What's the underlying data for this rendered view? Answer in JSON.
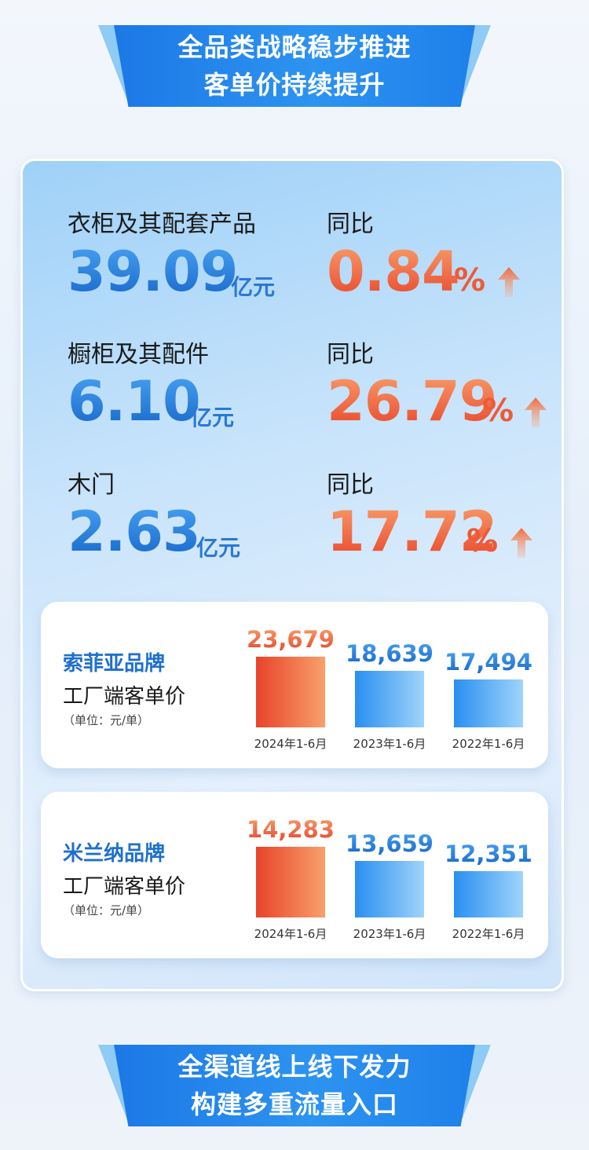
{
  "banner_top": {
    "line1": "全品类战略稳步推进",
    "line2": "客单价持续提升"
  },
  "banner_bottom": {
    "line1": "全渠道线上线下发力",
    "line2": "构建多重流量入口"
  },
  "stats": [
    {
      "label": "衣柜及其配套产品",
      "value": "39.09",
      "unit": "亿元",
      "yoy_label": "同比",
      "yoy_value": "0.84",
      "yoy_unit": "%"
    },
    {
      "label": "橱柜及其配件",
      "value": "6.10",
      "unit": "亿元",
      "yoy_label": "同比",
      "yoy_value": "26.79",
      "yoy_unit": "%"
    },
    {
      "label": "木门",
      "value": "2.63",
      "unit": "亿元",
      "yoy_label": "同比",
      "yoy_value": "17.72",
      "yoy_unit": "%"
    }
  ],
  "colors": {
    "blue": "#1f6fce",
    "orange": "#ee5a35",
    "bar_blue": "#3aa3f3",
    "bar_orange": "#ee5a35"
  },
  "chart_data": [
    {
      "type": "bar",
      "brand": "索菲亚品牌",
      "metric": "工厂端客单价",
      "unit_note": "（单位：元/单）",
      "categories": [
        "2024年1-6月",
        "2023年1-6月",
        "2022年1-6月"
      ],
      "values": [
        23679,
        18639,
        17494
      ],
      "value_labels": [
        "23,679",
        "18,639",
        "17,494"
      ]
    },
    {
      "type": "bar",
      "brand": "米兰纳品牌",
      "metric": "工厂端客单价",
      "unit_note": "（单位：元/单）",
      "categories": [
        "2024年1-6月",
        "2023年1-6月",
        "2022年1-6月"
      ],
      "values": [
        14283,
        13659,
        12351
      ],
      "value_labels": [
        "14,283",
        "13,659",
        "12,351"
      ]
    }
  ]
}
